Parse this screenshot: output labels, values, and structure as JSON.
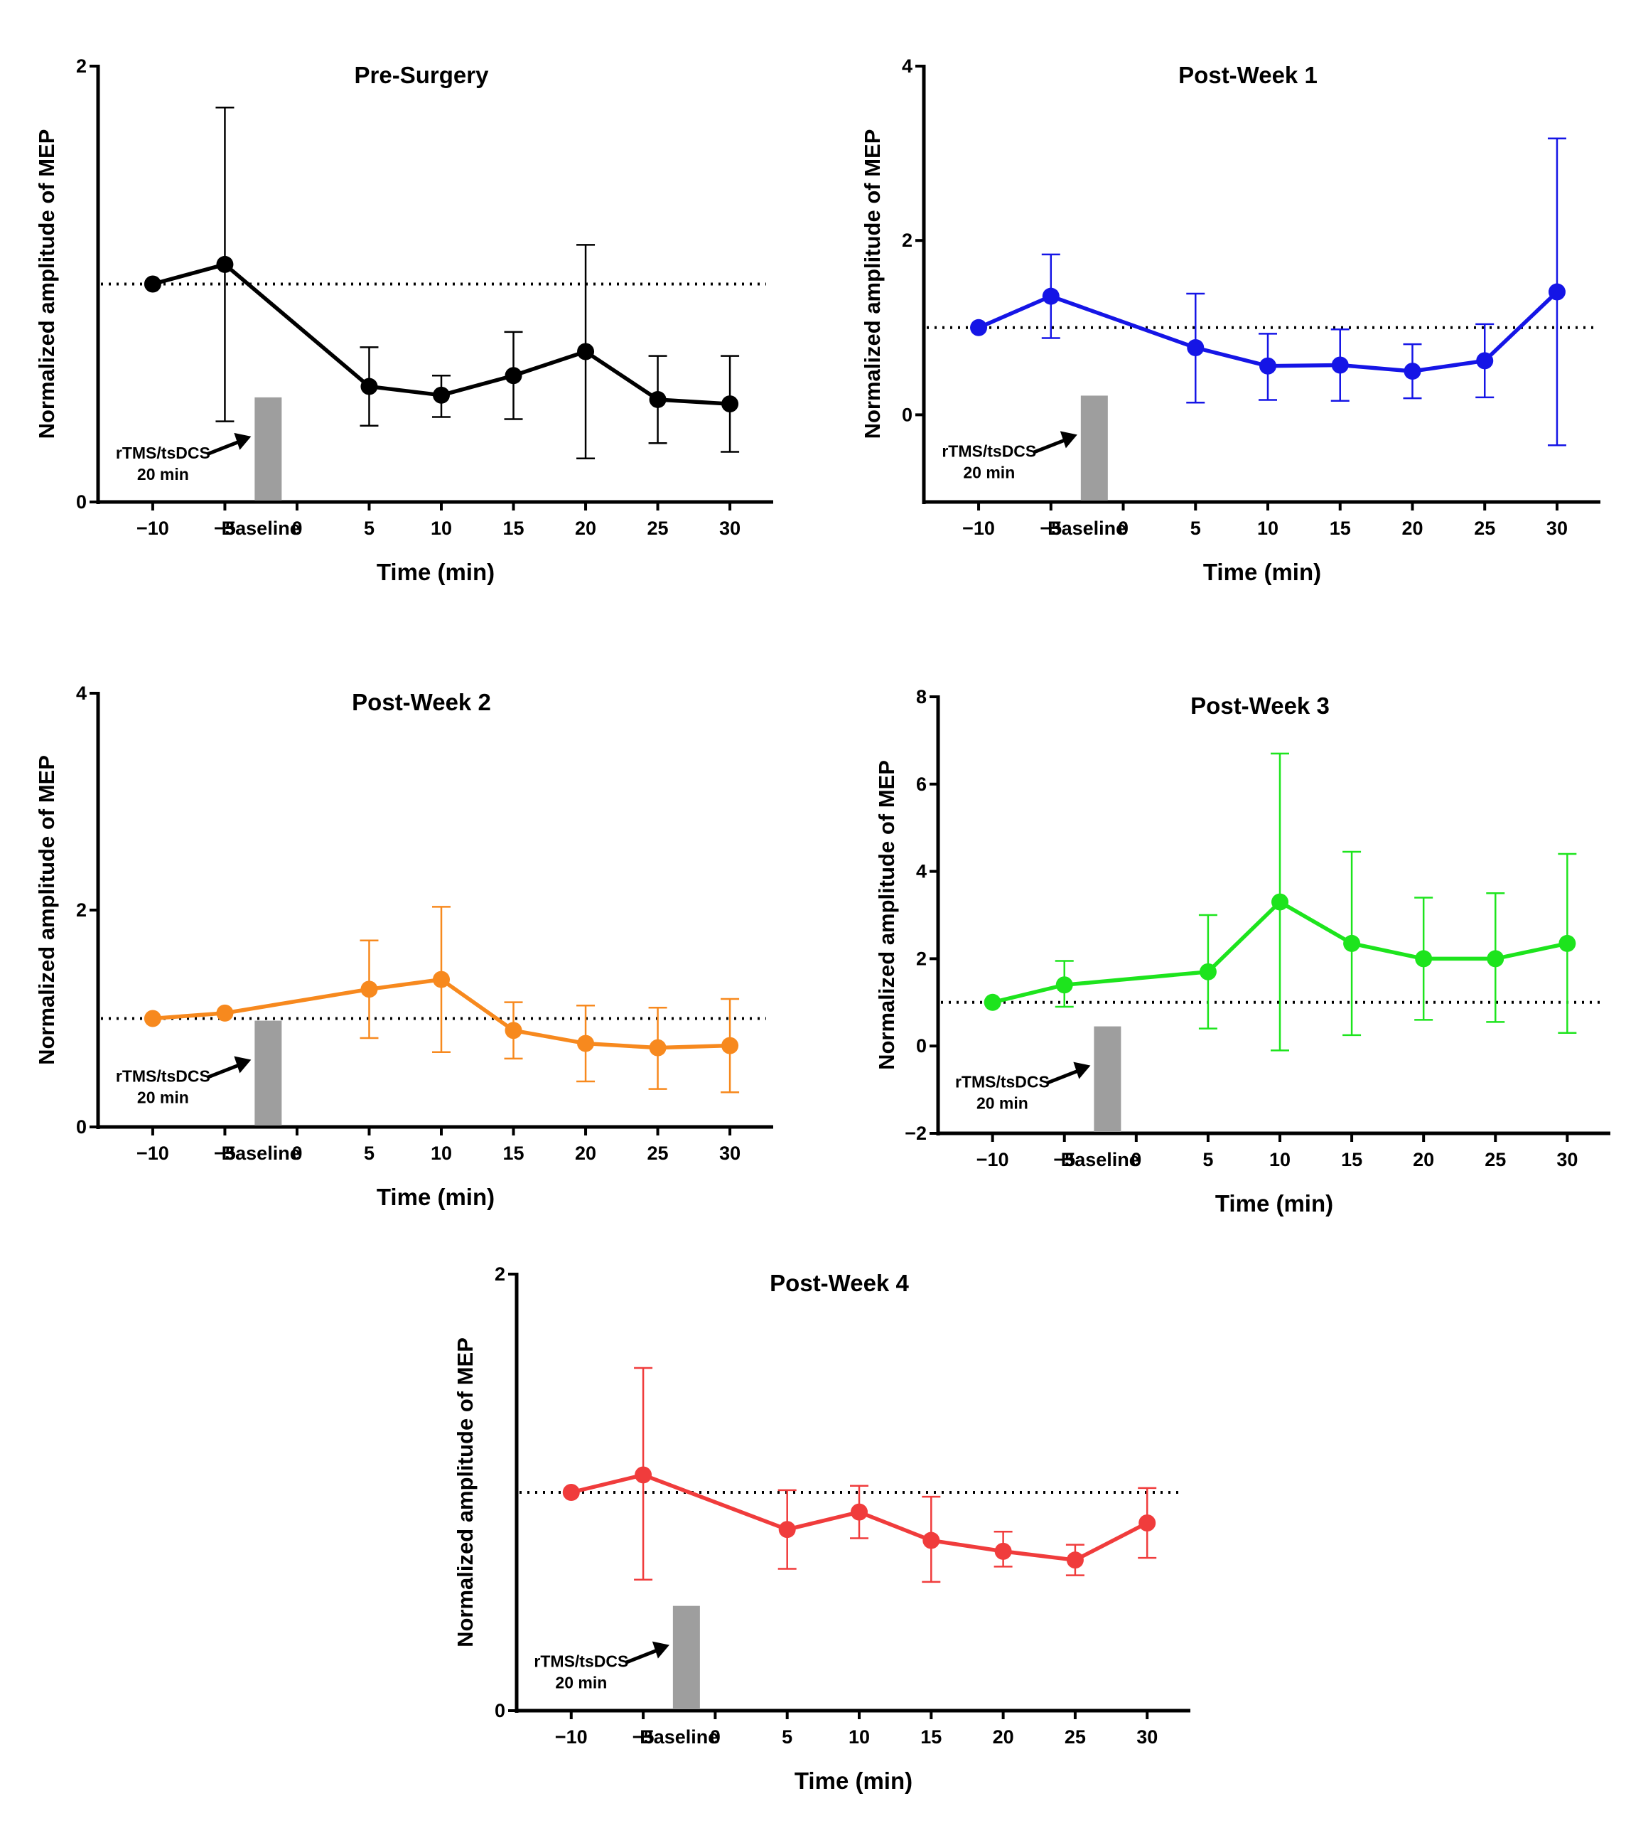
{
  "chart_data": [
    {
      "type": "line",
      "title": "Pre-Surgery",
      "xlabel": "Time (min)",
      "ylabel": "Normalized amplitude of  MEP",
      "color": "#000000",
      "x_ticks": [
        -10,
        -5,
        0,
        5,
        10,
        15,
        20,
        25,
        30
      ],
      "x_tick_labels": [
        "−10",
        "−5",
        "0",
        "5",
        "10",
        "15",
        "20",
        "25",
        "30"
      ],
      "baseline_label": "Baseline",
      "xlim": [
        -13,
        33
      ],
      "ylim": [
        0,
        2
      ],
      "y_ticks": [
        0,
        2
      ],
      "y_tick_labels": [
        "0",
        "2"
      ],
      "reference_line": 1,
      "stimulation_bar": {
        "x": -2,
        "y_top": 0.48
      },
      "annotation": {
        "line1": "rTMS/tsDCS",
        "line2": "20 min"
      },
      "x": [
        -10,
        -5,
        5,
        10,
        15,
        20,
        25,
        30
      ],
      "mean": [
        1.0,
        1.09,
        0.53,
        0.49,
        0.58,
        0.69,
        0.47,
        0.45
      ],
      "err_low": [
        1.0,
        0.37,
        0.35,
        0.39,
        0.38,
        0.2,
        0.27,
        0.23
      ],
      "err_high": [
        1.0,
        1.81,
        0.71,
        0.58,
        0.78,
        1.18,
        0.67,
        0.67
      ]
    },
    {
      "type": "line",
      "title": "Post-Week 1",
      "xlabel": "Time (min)",
      "ylabel": "Normalized amplitude of  MEP",
      "color": "#1515e6",
      "x_ticks": [
        -10,
        -5,
        0,
        5,
        10,
        15,
        20,
        25,
        30
      ],
      "x_tick_labels": [
        "−10",
        "−5",
        "0",
        "5",
        "10",
        "15",
        "20",
        "25",
        "30"
      ],
      "baseline_label": "Baseline",
      "xlim": [
        -13,
        33
      ],
      "ylim": [
        -1,
        4
      ],
      "y_ticks": [
        0,
        2,
        4
      ],
      "y_tick_labels": [
        "0",
        "2",
        "4"
      ],
      "reference_line": 1,
      "stimulation_bar": {
        "x": -2,
        "y_top": 0.22
      },
      "annotation": {
        "line1": "rTMS/tsDCS",
        "line2": "20 min"
      },
      "x": [
        -10,
        -5,
        5,
        10,
        15,
        20,
        25,
        30
      ],
      "mean": [
        1.0,
        1.36,
        0.77,
        0.56,
        0.57,
        0.5,
        0.62,
        1.41
      ],
      "err_low": [
        1.0,
        0.88,
        0.14,
        0.17,
        0.16,
        0.19,
        0.2,
        -0.35
      ],
      "err_high": [
        1.0,
        1.84,
        1.39,
        0.93,
        0.98,
        0.81,
        1.04,
        3.17
      ]
    },
    {
      "type": "line",
      "title": "Post-Week 2",
      "xlabel": "Time (min)",
      "ylabel": "Normalized amplitude of  MEP",
      "color": "#f7891e",
      "x_ticks": [
        -10,
        -5,
        0,
        5,
        10,
        15,
        20,
        25,
        30
      ],
      "x_tick_labels": [
        "−10",
        "−5",
        "0",
        "5",
        "10",
        "15",
        "20",
        "25",
        "30"
      ],
      "baseline_label": "Baseline",
      "xlim": [
        -13,
        33
      ],
      "ylim": [
        0,
        4
      ],
      "y_ticks": [
        0,
        2,
        4
      ],
      "y_tick_labels": [
        "0",
        "2",
        "4"
      ],
      "reference_line": 1,
      "stimulation_bar": {
        "x": -2,
        "y_top": 0.98
      },
      "annotation": {
        "line1": "rTMS/tsDCS",
        "line2": "20 min"
      },
      "x": [
        -10,
        -5,
        5,
        10,
        15,
        20,
        25,
        30
      ],
      "mean": [
        1.0,
        1.05,
        1.27,
        1.36,
        0.89,
        0.77,
        0.73,
        0.75
      ],
      "err_low": [
        1.0,
        1.05,
        0.82,
        0.69,
        0.63,
        0.42,
        0.35,
        0.32
      ],
      "err_high": [
        1.0,
        1.05,
        1.72,
        2.03,
        1.15,
        1.12,
        1.1,
        1.18
      ]
    },
    {
      "type": "line",
      "title": "Post-Week 3",
      "xlabel": "Time (min)",
      "ylabel": "Normalized amplitude of  MEP",
      "color": "#1de41d",
      "x_ticks": [
        -10,
        -5,
        0,
        5,
        10,
        15,
        20,
        25,
        30
      ],
      "x_tick_labels": [
        "−10",
        "−5",
        "0",
        "5",
        "10",
        "15",
        "20",
        "25",
        "30"
      ],
      "baseline_label": "Baseline",
      "xlim": [
        -13,
        33
      ],
      "ylim": [
        -2,
        8
      ],
      "y_ticks": [
        -2,
        0,
        2,
        4,
        6,
        8
      ],
      "y_tick_labels": [
        "−2",
        "0",
        "2",
        "4",
        "6",
        "8"
      ],
      "reference_line": 1,
      "stimulation_bar": {
        "x": -2,
        "y_top": 0.45
      },
      "annotation": {
        "line1": "rTMS/tsDCS",
        "line2": "20 min"
      },
      "x": [
        -10,
        -5,
        5,
        10,
        15,
        20,
        25,
        30
      ],
      "mean": [
        1.0,
        1.4,
        1.7,
        3.3,
        2.35,
        2.0,
        2.0,
        2.35
      ],
      "err_low": [
        1.0,
        0.9,
        0.4,
        -0.1,
        0.25,
        0.6,
        0.55,
        0.3
      ],
      "err_high": [
        1.0,
        1.95,
        3.0,
        6.7,
        4.45,
        3.4,
        3.5,
        4.4
      ]
    },
    {
      "type": "line",
      "title": "Post-Week 4",
      "xlabel": "Time (min)",
      "ylabel": "Normalized amplitude of  MEP",
      "color": "#f03c3c",
      "x_ticks": [
        -10,
        -5,
        0,
        5,
        10,
        15,
        20,
        25,
        30
      ],
      "x_tick_labels": [
        "−10",
        "−5",
        "0",
        "5",
        "10",
        "15",
        "20",
        "25",
        "30"
      ],
      "baseline_label": "Baseline",
      "xlim": [
        -13,
        33
      ],
      "ylim": [
        0,
        2
      ],
      "y_ticks": [
        0,
        2
      ],
      "y_tick_labels": [
        "0",
        "2"
      ],
      "reference_line": 1,
      "stimulation_bar": {
        "x": -2,
        "y_top": 0.48
      },
      "annotation": {
        "line1": "rTMS/tsDCS",
        "line2": "20 min"
      },
      "x": [
        -10,
        -5,
        5,
        10,
        15,
        20,
        25,
        30
      ],
      "mean": [
        1.0,
        1.08,
        0.83,
        0.91,
        0.78,
        0.73,
        0.69,
        0.86
      ],
      "err_low": [
        1.0,
        0.6,
        0.65,
        0.79,
        0.59,
        0.66,
        0.62,
        0.7
      ],
      "err_high": [
        1.0,
        1.57,
        1.01,
        1.03,
        0.98,
        0.82,
        0.76,
        1.02
      ]
    }
  ]
}
